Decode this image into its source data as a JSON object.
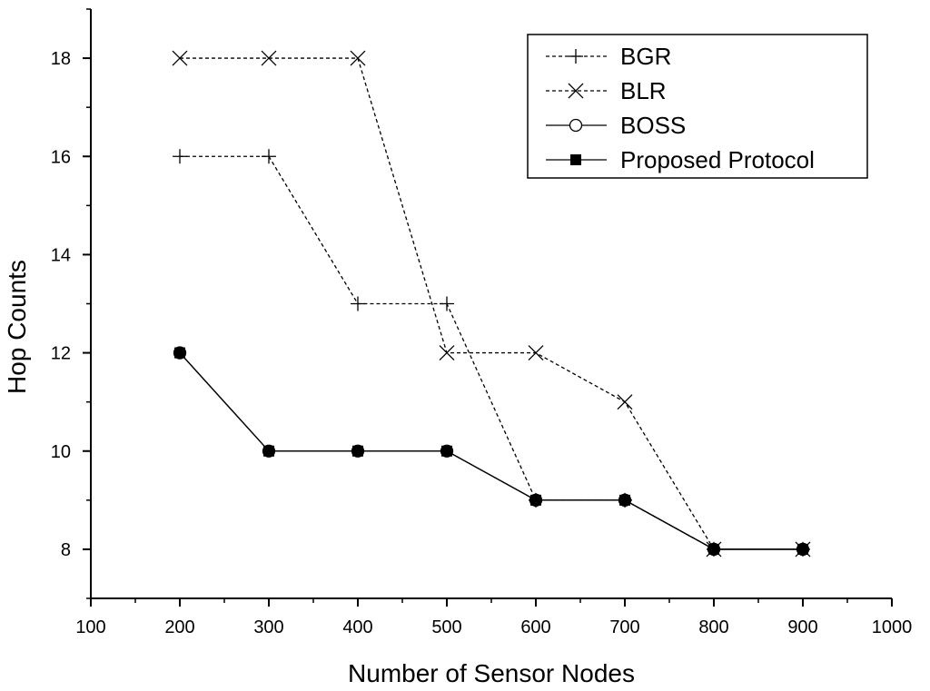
{
  "chart_data": {
    "type": "line",
    "title": "",
    "xlabel": "Number of Sensor Nodes",
    "ylabel": "Hop Counts",
    "xlim": [
      100,
      1000
    ],
    "ylim": [
      7,
      19
    ],
    "x_ticks": [
      100,
      200,
      300,
      400,
      500,
      600,
      700,
      800,
      900,
      1000
    ],
    "y_ticks": [
      8,
      10,
      12,
      14,
      16,
      18
    ],
    "x_tick_labels": [
      "100",
      "200",
      "300",
      "400",
      "500",
      "600",
      "700",
      "800",
      "900",
      "1000"
    ],
    "y_tick_labels": [
      "8",
      "10",
      "12",
      "14",
      "16",
      "18"
    ],
    "grid": false,
    "legend_position": "top-right",
    "series": [
      {
        "name": "BGR",
        "marker": "plus",
        "line": "dashed",
        "x": [
          200,
          300,
          400,
          500,
          600,
          700,
          800,
          900
        ],
        "y": [
          16,
          16,
          13,
          13,
          9,
          9,
          8,
          8
        ]
      },
      {
        "name": "BLR",
        "marker": "cross",
        "line": "dashed",
        "x": [
          200,
          300,
          400,
          500,
          600,
          700,
          800,
          900
        ],
        "y": [
          18,
          18,
          18,
          12,
          12,
          11,
          8,
          8
        ]
      },
      {
        "name": "BOSS",
        "marker": "open-circle",
        "line": "solid",
        "x": [
          200,
          300,
          400,
          500,
          600,
          700,
          800,
          900
        ],
        "y": [
          12,
          10,
          10,
          10,
          9,
          9,
          8,
          8
        ]
      },
      {
        "name": "Proposed Protocol",
        "marker": "filled-square",
        "line": "solid",
        "x": [
          200,
          300,
          400,
          500,
          600,
          700,
          800,
          900
        ],
        "y": [
          12,
          10,
          10,
          10,
          9,
          9,
          8,
          8
        ]
      }
    ]
  }
}
